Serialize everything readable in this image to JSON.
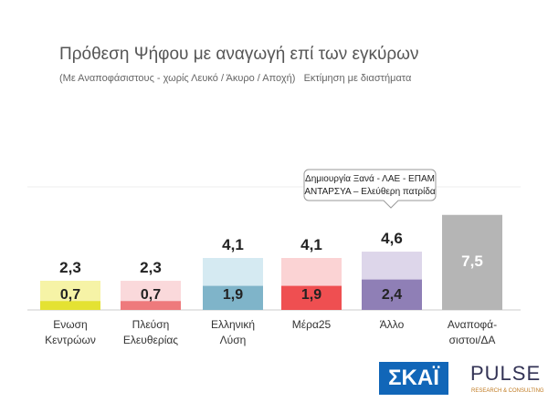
{
  "chart_data": {
    "type": "range_bar",
    "title": "Πρόθεση Ψήφου με αναγωγή επί των εγκύρων",
    "subtitle": "(Με Αναποφάσιστους - χωρίς Λευκό / Άκυρο / Αποχή)   Εκτίμηση με διαστήματα",
    "annotation": "Δημιουργία Ξανά  - ΛΑΕ - ΕΠΑΜ\nΑΝΤΑΡΣΥΑ – Ελεύθερη πατρίδα",
    "categories": [
      "Ενωση\nΚεντρώων",
      "Πλεύση\nΕλευθερίας",
      "Ελληνική\nΛύση",
      "Μέρα25",
      "Άλλο",
      "Αναποφά-\nσιστοι/ΔΑ"
    ],
    "series": [
      {
        "values": [
          2.3,
          2.3,
          4.1,
          4.1,
          4.6,
          7.5
        ],
        "value_labels": [
          "2,3",
          "2,3",
          "4,1",
          "4,1",
          "4,6",
          "7,5"
        ],
        "colors": [
          "#f6f3a6",
          "#fad9db",
          "#d5eaf2",
          "#fbd3d4",
          "#ddd6ea",
          "#b5b5b5"
        ]
      },
      {
        "values": [
          0.7,
          0.7,
          1.9,
          1.9,
          2.4,
          null
        ],
        "value_labels": [
          "0,7",
          "0,7",
          "1,9",
          "1,9",
          "2,4",
          null
        ],
        "colors": [
          "#e4e232",
          "#ee7a7c",
          "#7fb4c9",
          "#ef4f51",
          "#8f7fb6",
          null
        ]
      }
    ],
    "logos": {
      "skai": "ΣΚΑΪ",
      "pulse": "PULSE",
      "pulse_sub": "RESEARCH & CONSULTING"
    }
  }
}
